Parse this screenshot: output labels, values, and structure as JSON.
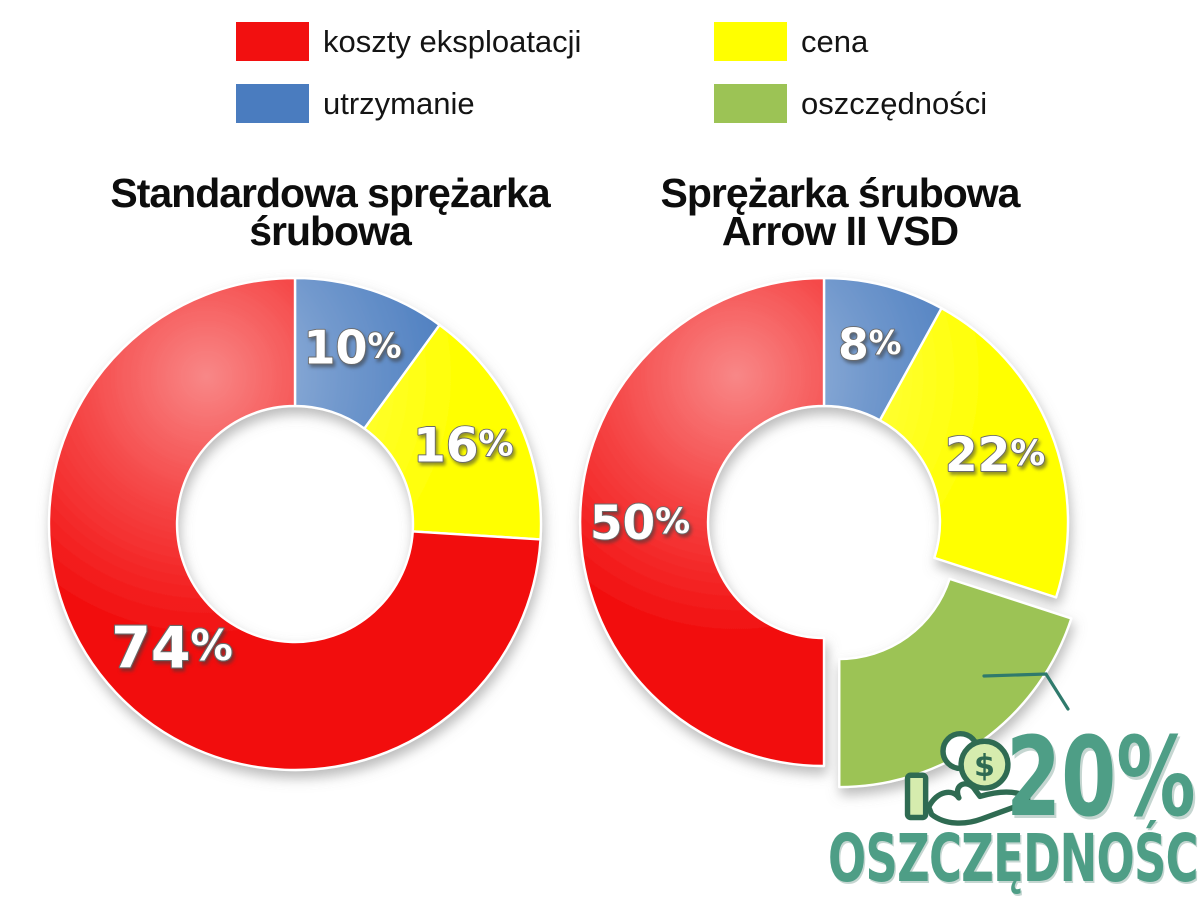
{
  "page": {
    "background": "#ffffff"
  },
  "colors": {
    "red": "#F21010",
    "blue": "#4A7CBF",
    "yellow": "#FFFF00",
    "green": "#9CC355",
    "savings_teal": "#4E9E86",
    "callout_line": "#2F7A6C"
  },
  "legend": {
    "position": "top",
    "items": [
      {
        "label": "koszty eksploatacji",
        "color": "#F21010"
      },
      {
        "label": "utrzymanie",
        "color": "#4A7CBF"
      },
      {
        "label": "cena",
        "color": "#FFFF00"
      },
      {
        "label": "oszczędności",
        "color": "#9CC355"
      }
    ]
  },
  "chart_data": [
    {
      "type": "pie",
      "subtype": "donut",
      "title": "Standardowa sprężarka śrubowa",
      "title_lines": [
        "Standardowa sprężarka",
        "śrubowa"
      ],
      "units": "percent",
      "start_angle_deg": 0,
      "direction": "clockwise",
      "hole_ratio": 0.48,
      "slices": [
        {
          "label": "utrzymanie",
          "value": 10,
          "display": "10%",
          "color": "#4A7CBF"
        },
        {
          "label": "cena",
          "value": 16,
          "display": "16%",
          "color": "#FFFF00"
        },
        {
          "label": "koszty eksploatacji",
          "value": 74,
          "display": "74%",
          "color": "#F21010"
        }
      ]
    },
    {
      "type": "pie",
      "subtype": "donut",
      "title": "Sprężarka śrubowa Arrow II VSD",
      "title_lines": [
        "Sprężarka śrubowa",
        "Arrow II VSD"
      ],
      "units": "percent",
      "start_angle_deg": 0,
      "direction": "clockwise",
      "hole_ratio": 0.48,
      "slices": [
        {
          "label": "utrzymanie",
          "value": 8,
          "display": "8%",
          "color": "#4A7CBF"
        },
        {
          "label": "cena",
          "value": 22,
          "display": "22%",
          "color": "#FFFF00"
        },
        {
          "label": "oszczędności",
          "value": 20,
          "display": "",
          "color": "#9CC355",
          "exploded": true
        },
        {
          "label": "koszty eksploatacji",
          "value": 50,
          "display": "50%",
          "color": "#F21010"
        }
      ]
    }
  ],
  "savings_badge": {
    "percent": "20%",
    "label": "OSZCZĘDNOŚCI",
    "color": "#4E9E86",
    "icon": "hand-with-coins"
  }
}
